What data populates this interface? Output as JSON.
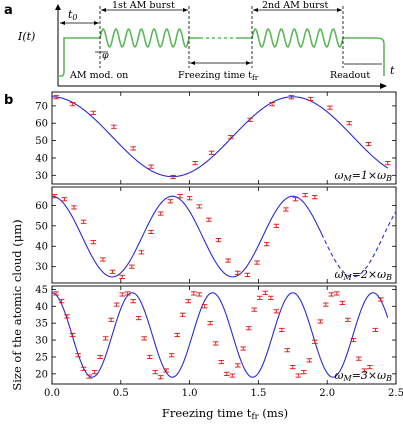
{
  "panel_a": {
    "letter": "a",
    "ylabel": "I(t)",
    "xlabel": "t",
    "t0": "t",
    "t0_sub": "0",
    "burst1": "1st AM burst",
    "burst2": "2nd AM burst",
    "mod_on": "AM mod. on",
    "freezing": "Freezing time t",
    "freezing_sub": "fr",
    "readout": "Readout",
    "phase": "φ",
    "colors": {
      "signal": "#5cb85c"
    }
  },
  "panel_b": {
    "letter": "b",
    "ylabel": "Size of the atomic cloud (μm)",
    "xlabel": "Freezing time t",
    "xlabel_sub": "fr",
    "xlabel_unit": " (ms)",
    "xlim": [
      0,
      2.5
    ],
    "xticks": [
      "0.0",
      "0.5",
      "1.0",
      "1.5",
      "2.0",
      "2.5"
    ],
    "colors": {
      "fit": "#2b2bd6",
      "data": "#e01010"
    }
  },
  "chart_data": [
    {
      "type": "scatter",
      "label_omega": "ω",
      "label_sub": "M",
      "label_rest": "=1×ω",
      "label_sub2": "B",
      "ylim": [
        25,
        78
      ],
      "yticks": [
        30,
        40,
        50,
        60,
        70
      ],
      "fit": {
        "mean": 52.25,
        "amp": 23.0,
        "period": 1.75,
        "phase_x": 0.0,
        "x_end": 2.44
      },
      "x": [
        0.03,
        0.15,
        0.3,
        0.45,
        0.59,
        0.72,
        0.88,
        1.04,
        1.16,
        1.3,
        1.44,
        1.6,
        1.74,
        1.88,
        2.02,
        2.16,
        2.3,
        2.44
      ],
      "y": [
        75,
        71,
        66,
        58,
        45.5,
        35,
        29,
        37,
        43,
        52,
        62,
        71,
        75,
        74,
        69,
        60,
        48,
        37
      ]
    },
    {
      "type": "scatter",
      "label_omega": "ω",
      "label_sub": "M",
      "label_rest": "=2×ω",
      "label_sub2": "B",
      "ylim": [
        22,
        69
      ],
      "yticks": [
        30,
        40,
        50,
        60
      ],
      "fit": {
        "mean": 44.75,
        "amp": 19.75,
        "period": 0.875,
        "phase_x": 0.0,
        "x_end": 1.96,
        "dashed_end": 2.5
      },
      "x": [
        0.02,
        0.09,
        0.16,
        0.23,
        0.3,
        0.37,
        0.44,
        0.51,
        0.58,
        0.65,
        0.72,
        0.79,
        0.86,
        0.93,
        1.0,
        1.07,
        1.14,
        1.21,
        1.28,
        1.35,
        1.42,
        1.49,
        1.56,
        1.63,
        1.7,
        1.77,
        1.84,
        1.91
      ],
      "y": [
        64.5,
        63,
        59,
        52,
        42,
        33.5,
        27.5,
        25,
        30,
        37,
        47,
        56,
        62,
        64.5,
        63.5,
        59.5,
        53,
        43,
        33,
        27,
        26,
        32,
        41,
        50,
        58,
        63,
        65,
        64
      ]
    },
    {
      "type": "scatter",
      "label_omega": "ω",
      "label_sub": "M",
      "label_rest": "=3×ω",
      "label_sub2": "B",
      "ylim": [
        17,
        46
      ],
      "yticks": [
        20,
        25,
        30,
        35,
        40,
        45
      ],
      "fit": {
        "mean": 31.5,
        "amp": 12.5,
        "period": 0.5833,
        "phase_x": 0.0,
        "x_end": 2.44
      },
      "x": [
        0.03,
        0.07,
        0.11,
        0.15,
        0.19,
        0.23,
        0.27,
        0.31,
        0.35,
        0.39,
        0.43,
        0.47,
        0.51,
        0.55,
        0.59,
        0.63,
        0.67,
        0.71,
        0.75,
        0.79,
        0.83,
        0.87,
        0.91,
        0.95,
        0.99,
        1.03,
        1.07,
        1.11,
        1.15,
        1.19,
        1.23,
        1.27,
        1.31,
        1.35,
        1.39,
        1.43,
        1.47,
        1.51,
        1.55,
        1.59,
        1.63,
        1.67,
        1.71,
        1.75,
        1.79,
        1.83,
        1.87,
        1.91,
        1.95,
        1.99,
        2.03,
        2.07,
        2.11,
        2.15,
        2.19,
        2.23,
        2.27,
        2.31,
        2.35,
        2.39
      ],
      "y": [
        43.8,
        41.5,
        37.0,
        31.5,
        25.5,
        21.5,
        19.2,
        20.5,
        25.0,
        30.5,
        36.0,
        40.5,
        43.5,
        43.8,
        41.5,
        36.5,
        30.5,
        25.0,
        20.5,
        19.0,
        21.0,
        25.5,
        31.5,
        37.5,
        41.5,
        43.8,
        43.5,
        40.0,
        35.0,
        29.0,
        23.5,
        20.0,
        19.5,
        22.5,
        27.5,
        33.5,
        39.0,
        42.5,
        44.0,
        42.5,
        38.5,
        33.0,
        27.0,
        22.0,
        19.5,
        20.5,
        24.0,
        29.5,
        35.5,
        40.5,
        43.5,
        43.8,
        41.0,
        36.0,
        30.0,
        24.5,
        21.0,
        22.0,
        33.0,
        42.0
      ]
    }
  ]
}
